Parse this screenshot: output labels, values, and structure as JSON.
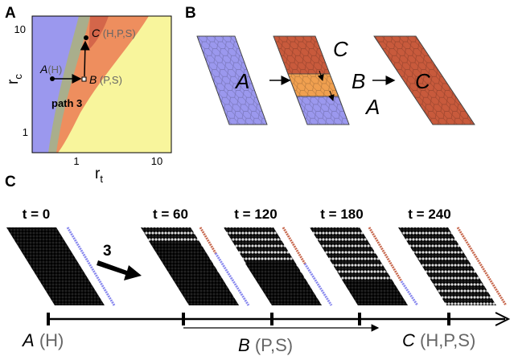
{
  "panel_a": {
    "label": "A",
    "y_label": "r",
    "y_label_sub": "c",
    "x_label": "r",
    "x_label_sub": "t",
    "y_ticks": [
      "10",
      "1"
    ],
    "x_ticks": [
      "1",
      "10"
    ],
    "points": [
      {
        "name": "C",
        "state": "(H,P,S)"
      },
      {
        "name": "A",
        "state": "(H)"
      },
      {
        "name": "B",
        "state": "(P,S)"
      }
    ],
    "path_label": "path 3"
  },
  "panel_b": {
    "label": "B",
    "grids": [
      "A",
      "C",
      "B",
      "A",
      "C"
    ]
  },
  "panel_c": {
    "label": "C",
    "times": [
      "t = 0",
      "t = 60",
      "t = 120",
      "t = 180",
      "t = 240"
    ],
    "path_number": "3",
    "timeline": [
      {
        "name": "A",
        "state": "(H)"
      },
      {
        "name": "B",
        "state": "(P,S)"
      },
      {
        "name": "C",
        "state": "(H,P,S)"
      }
    ]
  }
}
